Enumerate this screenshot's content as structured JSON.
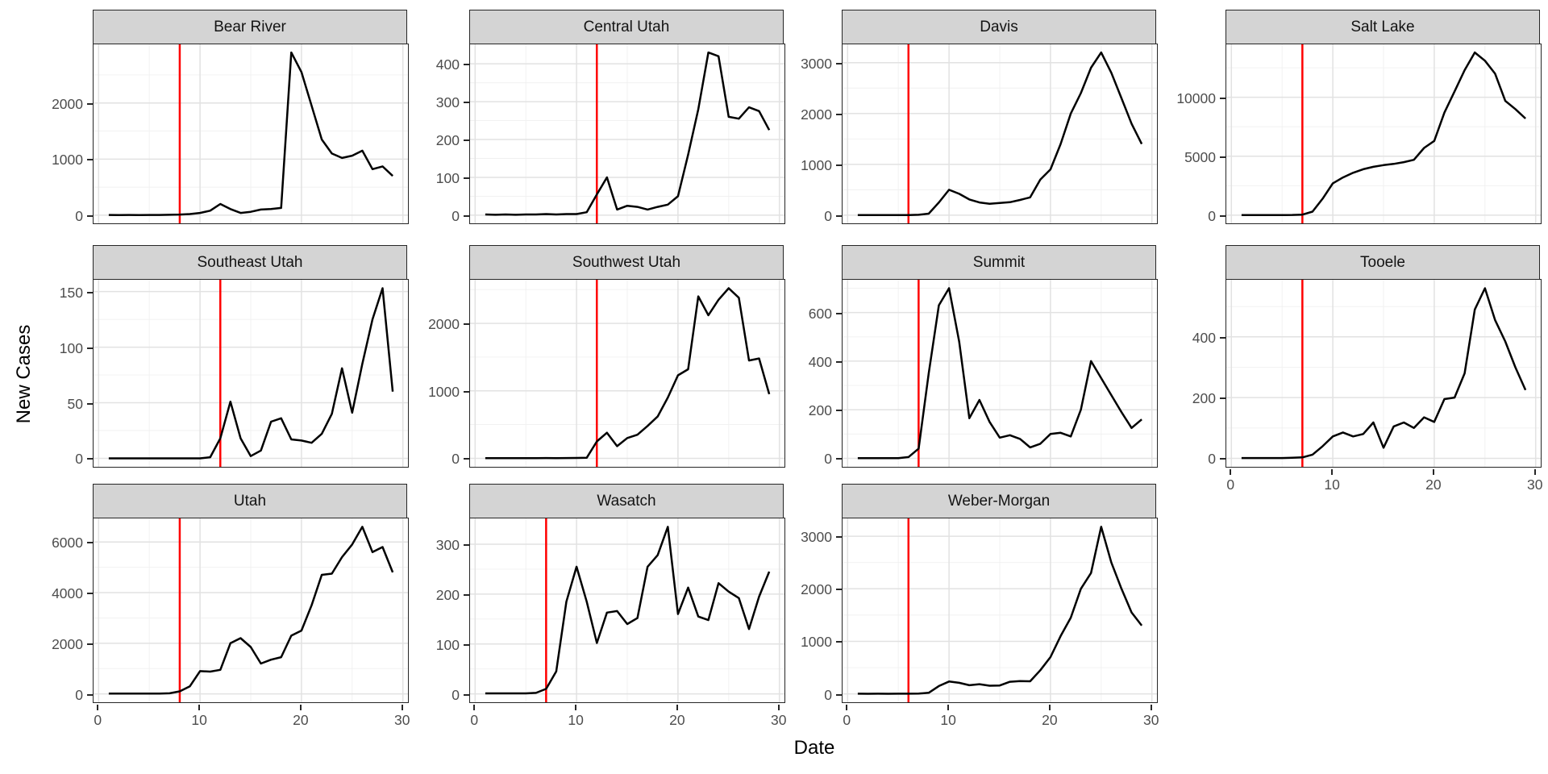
{
  "chart_data": {
    "type": "line",
    "xlabel": "Date",
    "ylabel": "New Cases",
    "x": [
      1,
      2,
      3,
      4,
      5,
      6,
      7,
      8,
      9,
      10,
      11,
      12,
      13,
      14,
      15,
      16,
      17,
      18,
      19,
      20,
      21,
      22,
      23,
      24,
      25,
      26,
      27,
      28,
      29
    ],
    "x_ticks": [
      0,
      10,
      20,
      30
    ],
    "x_minor_ticks": [
      5,
      15,
      25
    ],
    "xlim": [
      -0.5,
      30.5
    ],
    "legend": "none",
    "grid": "major+minor",
    "colors": {
      "series_line": "#000000",
      "vline": "#ff0000",
      "strip_background": "#d4d4d4",
      "panel_border": "#262626",
      "axis_text": "#4d4d4d"
    },
    "facets": [
      {
        "name": "Bear River",
        "row": 0,
        "col": 0,
        "show_x_axis": false,
        "y_ticks": [
          0,
          1000,
          2000
        ],
        "vline_x": 8,
        "values": [
          5,
          3,
          4,
          3,
          4,
          5,
          8,
          12,
          20,
          40,
          80,
          200,
          110,
          40,
          60,
          100,
          110,
          130,
          2900,
          2550,
          1950,
          1350,
          1100,
          1020,
          1060,
          1150,
          820,
          870,
          700
        ]
      },
      {
        "name": "Central Utah",
        "row": 0,
        "col": 1,
        "show_x_axis": false,
        "y_ticks": [
          0,
          100,
          200,
          300,
          400
        ],
        "vline_x": 12,
        "values": [
          2,
          1,
          2,
          1,
          2,
          2,
          3,
          2,
          3,
          3,
          8,
          55,
          100,
          15,
          25,
          22,
          15,
          22,
          28,
          50,
          160,
          280,
          430,
          420,
          260,
          255,
          285,
          275,
          225
        ]
      },
      {
        "name": "Davis",
        "row": 0,
        "col": 2,
        "show_x_axis": false,
        "y_ticks": [
          0,
          1000,
          2000,
          3000
        ],
        "vline_x": 6,
        "values": [
          3,
          2,
          3,
          2,
          3,
          4,
          8,
          30,
          250,
          500,
          420,
          310,
          250,
          225,
          240,
          255,
          300,
          350,
          700,
          900,
          1400,
          2000,
          2400,
          2900,
          3200,
          2800,
          2300,
          1800,
          1400
        ]
      },
      {
        "name": "Salt Lake",
        "row": 0,
        "col": 3,
        "show_x_axis": false,
        "y_ticks": [
          0,
          5000,
          10000
        ],
        "vline_x": 7,
        "values": [
          15,
          10,
          12,
          10,
          12,
          20,
          50,
          300,
          1400,
          2700,
          3200,
          3600,
          3900,
          4100,
          4250,
          4350,
          4500,
          4700,
          5700,
          6300,
          8700,
          10500,
          12300,
          13800,
          13100,
          12000,
          9700,
          9000,
          8200
        ]
      },
      {
        "name": "Southeast Utah",
        "row": 1,
        "col": 0,
        "show_x_axis": false,
        "y_ticks": [
          0,
          50,
          100,
          150
        ],
        "vline_x": 12,
        "values": [
          0,
          0,
          0,
          0,
          0,
          0,
          0,
          0,
          0,
          0,
          1,
          18,
          51,
          18,
          2,
          7,
          33,
          36,
          17,
          16,
          14,
          22,
          40,
          81,
          41,
          85,
          125,
          153,
          60
        ]
      },
      {
        "name": "Southwest Utah",
        "row": 1,
        "col": 1,
        "show_x_axis": false,
        "y_ticks": [
          0,
          1000,
          2000
        ],
        "vline_x": 12,
        "values": [
          3,
          2,
          3,
          2,
          3,
          3,
          4,
          3,
          4,
          5,
          8,
          250,
          380,
          180,
          300,
          350,
          480,
          620,
          900,
          1230,
          1320,
          2400,
          2120,
          2350,
          2520,
          2380,
          1450,
          1480,
          950
        ]
      },
      {
        "name": "Summit",
        "row": 1,
        "col": 2,
        "show_x_axis": false,
        "y_ticks": [
          0,
          200,
          400,
          600
        ],
        "vline_x": 7,
        "values": [
          1,
          1,
          1,
          1,
          1,
          5,
          40,
          350,
          630,
          700,
          480,
          165,
          240,
          150,
          85,
          95,
          80,
          45,
          60,
          100,
          105,
          90,
          200,
          400,
          330,
          260,
          190,
          125,
          160
        ]
      },
      {
        "name": "Tooele",
        "row": 1,
        "col": 3,
        "show_x_axis": true,
        "y_ticks": [
          0,
          200,
          400
        ],
        "vline_x": 7,
        "values": [
          1,
          1,
          1,
          1,
          1,
          2,
          3,
          12,
          40,
          72,
          85,
          72,
          80,
          118,
          35,
          105,
          118,
          100,
          135,
          120,
          195,
          200,
          280,
          490,
          560,
          455,
          385,
          300,
          225
        ]
      },
      {
        "name": "Utah",
        "row": 2,
        "col": 0,
        "show_x_axis": true,
        "y_ticks": [
          0,
          2000,
          4000,
          6000
        ],
        "vline_x": 8,
        "values": [
          15,
          10,
          12,
          10,
          12,
          15,
          25,
          100,
          300,
          900,
          880,
          950,
          2000,
          2200,
          1850,
          1200,
          1350,
          1450,
          2300,
          2500,
          3500,
          4700,
          4750,
          5400,
          5900,
          6600,
          5600,
          5800,
          4800
        ]
      },
      {
        "name": "Wasatch",
        "row": 2,
        "col": 1,
        "show_x_axis": true,
        "y_ticks": [
          0,
          100,
          200,
          300
        ],
        "vline_x": 7,
        "values": [
          1,
          1,
          1,
          1,
          1,
          2,
          10,
          45,
          185,
          255,
          185,
          102,
          163,
          166,
          140,
          152,
          255,
          278,
          335,
          160,
          213,
          155,
          148,
          222,
          205,
          192,
          130,
          195,
          245
        ]
      },
      {
        "name": "Weber-Morgan",
        "row": 2,
        "col": 2,
        "show_x_axis": true,
        "y_ticks": [
          0,
          1000,
          2000,
          3000
        ],
        "vline_x": 6,
        "values": [
          3,
          2,
          3,
          2,
          3,
          3,
          5,
          20,
          150,
          235,
          210,
          165,
          185,
          155,
          160,
          230,
          245,
          240,
          450,
          700,
          1100,
          1450,
          2000,
          2300,
          3180,
          2500,
          2000,
          1550,
          1300
        ]
      }
    ]
  }
}
